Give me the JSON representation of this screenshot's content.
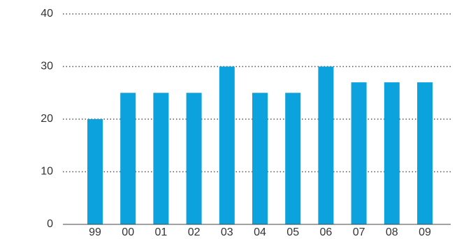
{
  "chart_data": {
    "type": "bar",
    "categories": [
      "99",
      "00",
      "01",
      "02",
      "03",
      "04",
      "05",
      "06",
      "07",
      "08",
      "09"
    ],
    "values": [
      20,
      25,
      25,
      25,
      30,
      25,
      25,
      30,
      27,
      27,
      27
    ],
    "color": "#0ba2dd",
    "ylim": [
      0,
      40
    ],
    "yticks": [
      0,
      10,
      20,
      30,
      40
    ],
    "grid": true
  }
}
